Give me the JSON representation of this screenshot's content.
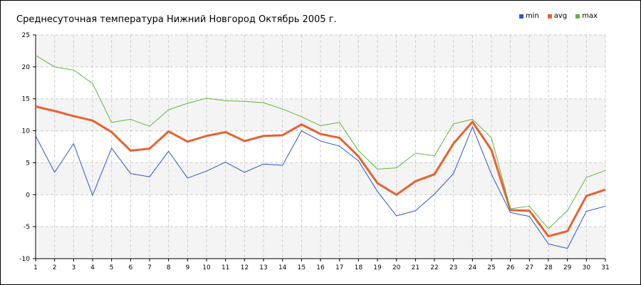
{
  "chart_data": {
    "type": "line",
    "title": "Среднесуточная температура Нижний Новгород  Октябрь 2005 г.",
    "xlabel": "",
    "ylabel": "",
    "x": [
      1,
      2,
      3,
      4,
      5,
      6,
      7,
      8,
      9,
      10,
      11,
      12,
      13,
      14,
      15,
      16,
      17,
      18,
      19,
      20,
      21,
      22,
      23,
      24,
      25,
      26,
      27,
      28,
      29,
      30,
      31
    ],
    "yticks": [
      25,
      20,
      15,
      10,
      5,
      0,
      -5,
      -10
    ],
    "ylim": [
      -10,
      25
    ],
    "grid": true,
    "legend_position": "top-right",
    "series": [
      {
        "name": "min",
        "color": "#2f55d4",
        "values": [
          9.2,
          3.5,
          8.0,
          -0.1,
          7.3,
          3.3,
          2.8,
          6.8,
          2.6,
          3.7,
          5.1,
          3.5,
          4.8,
          4.6,
          10.0,
          8.4,
          7.6,
          5.3,
          0.5,
          -3.3,
          -2.5,
          0.1,
          3.3,
          10.6,
          3.2,
          -2.8,
          -3.4,
          -7.7,
          -8.4,
          -2.6,
          -1.8
        ]
      },
      {
        "name": "avg",
        "color": "#e8622e",
        "values": [
          13.8,
          13.1,
          12.3,
          11.6,
          9.8,
          6.9,
          7.2,
          9.9,
          8.3,
          9.2,
          9.8,
          8.4,
          9.2,
          9.3,
          11.0,
          9.5,
          8.9,
          6.0,
          1.8,
          0.0,
          2.1,
          3.2,
          8.0,
          11.4,
          7.0,
          -2.4,
          -2.5,
          -6.5,
          -5.7,
          -0.2,
          0.8
        ]
      },
      {
        "name": "max",
        "color": "#5cb838",
        "values": [
          21.8,
          20.0,
          19.5,
          17.4,
          11.3,
          11.8,
          10.7,
          13.3,
          14.3,
          15.1,
          14.7,
          14.6,
          14.4,
          13.4,
          12.2,
          10.8,
          11.3,
          6.9,
          4.0,
          4.2,
          6.5,
          6.1,
          11.1,
          11.8,
          8.9,
          -2.2,
          -1.8,
          -5.3,
          -2.5,
          2.7,
          3.8
        ]
      }
    ]
  }
}
